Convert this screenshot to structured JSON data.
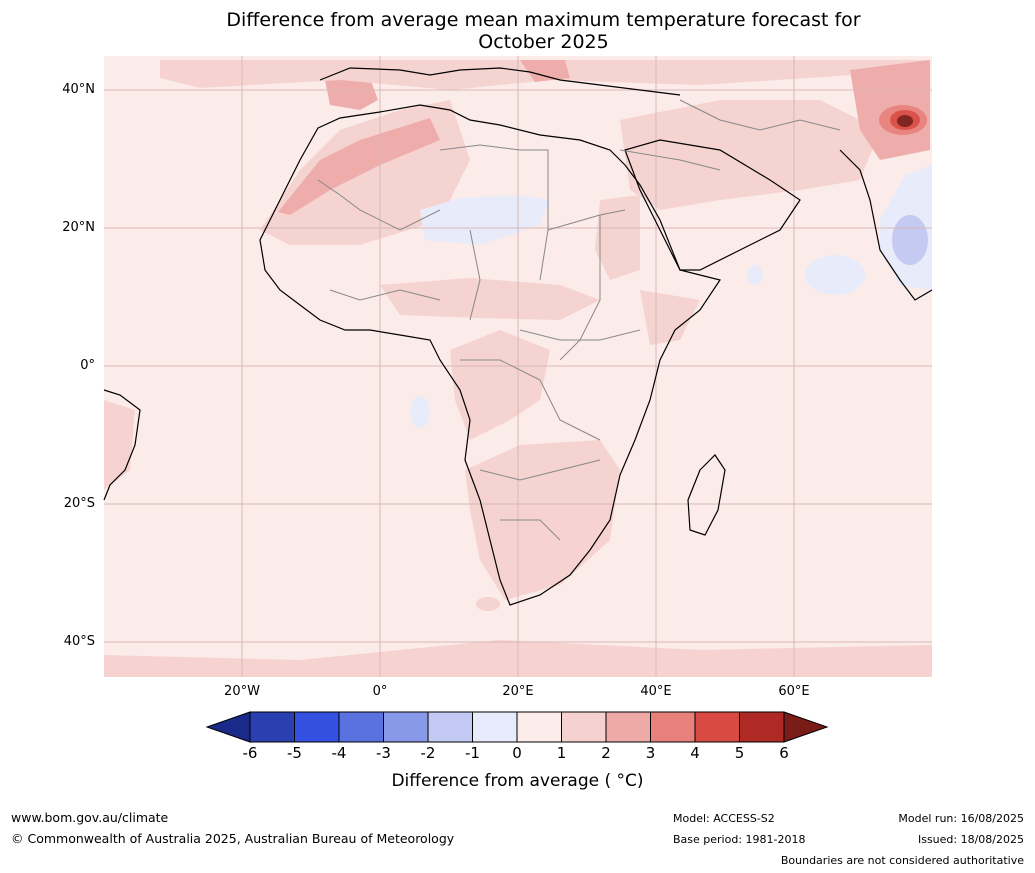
{
  "title_line1": "Difference from average mean maximum temperature forecast for",
  "title_line2": "October 2025",
  "lat_ticks": [
    "40°N",
    "20°N",
    "0°",
    "20°S",
    "40°S"
  ],
  "lon_ticks": [
    "20°W",
    "0°",
    "20°E",
    "40°E",
    "60°E"
  ],
  "colorbar": {
    "ticks": [
      "-6",
      "-5",
      "-4",
      "-3",
      "-2",
      "-1",
      "0",
      "1",
      "2",
      "3",
      "4",
      "5",
      "6"
    ],
    "colors": [
      "#1a2a8a",
      "#2a3fb0",
      "#3450e0",
      "#5a72e0",
      "#8799e8",
      "#c2c9f2",
      "#e8ebfb",
      "#fbebe9",
      "#f5d2d0",
      "#eeaaa7",
      "#e8807c",
      "#d94a42",
      "#b02a25",
      "#7a1c18"
    ],
    "label": "Difference from average ( °C)"
  },
  "footer": {
    "website": "www.bom.gov.au/climate",
    "copyright": "© Commonwealth of Australia 2025, Australian Bureau of Meteorology",
    "model": "Model: ACCESS-S2",
    "base_period": "Base period: 1981-2018",
    "model_run": "Model run: 16/08/2025",
    "issued": "Issued: 18/08/2025",
    "disclaimer": "Boundaries are not considered authoritative"
  }
}
